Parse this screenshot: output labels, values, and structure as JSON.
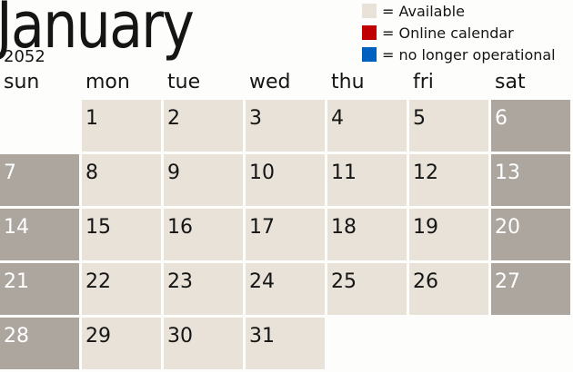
{
  "header": {
    "month": "January",
    "year": "2052"
  },
  "legend": [
    {
      "color": "#e8e2d8",
      "label": "= Available"
    },
    {
      "color": "#c00000",
      "label": "= Online calendar"
    },
    {
      "color": "#0060c0",
      "label": "= no longer operational"
    }
  ],
  "weekdays": [
    "sun",
    "mon",
    "tue",
    "wed",
    "thu",
    "fri",
    "sat"
  ],
  "colors": {
    "available": "#e8e2d8",
    "weekend": "#aca69e"
  },
  "days": [
    "1",
    "2",
    "3",
    "4",
    "5",
    "6",
    "7",
    "8",
    "9",
    "10",
    "11",
    "12",
    "13",
    "14",
    "15",
    "16",
    "17",
    "18",
    "19",
    "20",
    "21",
    "22",
    "23",
    "24",
    "25",
    "26",
    "27",
    "28",
    "29",
    "30",
    "31"
  ]
}
